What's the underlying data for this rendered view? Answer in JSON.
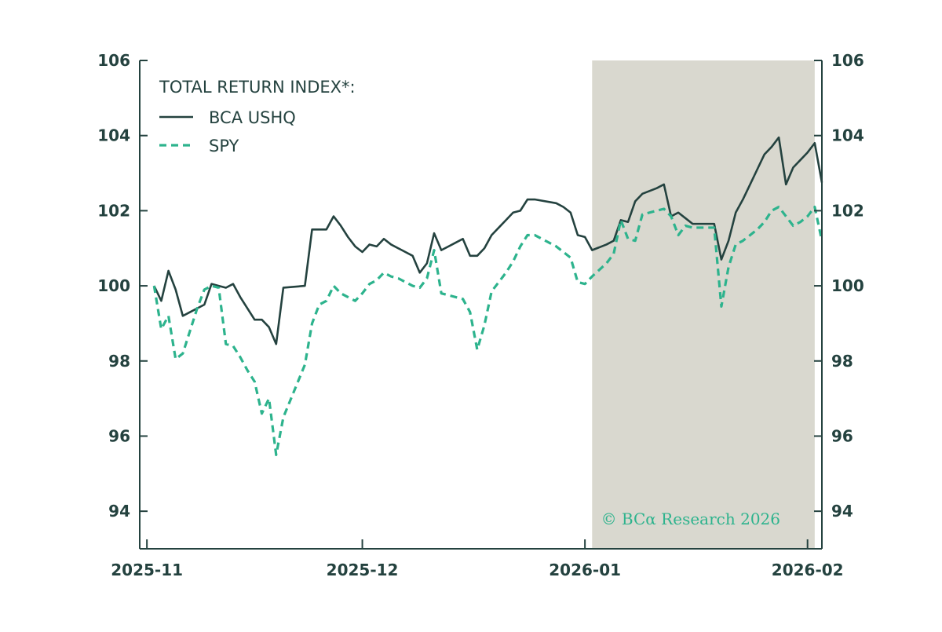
{
  "chart_data": {
    "type": "line",
    "legend_title": "TOTAL RETURN INDEX*:",
    "legend_placement": "top-left",
    "x_tick_labels": [
      "2025-11",
      "2025-12",
      "2026-01",
      "2026-02"
    ],
    "xlim": [
      "2025-10-31",
      "2026-02-03"
    ],
    "ylim": [
      93,
      106
    ],
    "y_ticks": [
      94,
      96,
      98,
      100,
      102,
      104,
      106
    ],
    "y_tick_labels": [
      "94",
      "96",
      "98",
      "100",
      "102",
      "104",
      "106"
    ],
    "grid": false,
    "shaded_region": {
      "start": "2026-01-02",
      "end": "2026-02-02",
      "color": "#d9d8cf"
    },
    "copyright": "© BCα Research 2026",
    "series": [
      {
        "name": "BCA USHQ",
        "color": "#24423f",
        "style": "solid",
        "points": [
          [
            "2025-11-02",
            100.0
          ],
          [
            "2025-11-03",
            99.6
          ],
          [
            "2025-11-04",
            100.4
          ],
          [
            "2025-11-05",
            99.9
          ],
          [
            "2025-11-06",
            99.2
          ],
          [
            "2025-11-07",
            99.3
          ],
          [
            "2025-11-08",
            99.4
          ],
          [
            "2025-11-09",
            99.5
          ],
          [
            "2025-11-10",
            100.05
          ],
          [
            "2025-11-11",
            100.0
          ],
          [
            "2025-11-12",
            99.95
          ],
          [
            "2025-11-13",
            100.05
          ],
          [
            "2025-11-14",
            99.7
          ],
          [
            "2025-11-15",
            99.4
          ],
          [
            "2025-11-16",
            99.1
          ],
          [
            "2025-11-17",
            99.1
          ],
          [
            "2025-11-18",
            98.9
          ],
          [
            "2025-11-19",
            98.45
          ],
          [
            "2025-11-20",
            99.95
          ],
          [
            "2025-11-23",
            100.0
          ],
          [
            "2025-11-24",
            101.5
          ],
          [
            "2025-11-25",
            101.5
          ],
          [
            "2025-11-26",
            101.5
          ],
          [
            "2025-11-27",
            101.85
          ],
          [
            "2025-11-28",
            101.6
          ],
          [
            "2025-11-29",
            101.3
          ],
          [
            "2025-11-30",
            101.05
          ],
          [
            "2025-12-01",
            100.9
          ],
          [
            "2025-12-02",
            101.1
          ],
          [
            "2025-12-03",
            101.05
          ],
          [
            "2025-12-04",
            101.25
          ],
          [
            "2025-12-05",
            101.1
          ],
          [
            "2025-12-06",
            101.0
          ],
          [
            "2025-12-07",
            100.9
          ],
          [
            "2025-12-08",
            100.8
          ],
          [
            "2025-12-09",
            100.35
          ],
          [
            "2025-12-10",
            100.6
          ],
          [
            "2025-12-11",
            101.4
          ],
          [
            "2025-12-12",
            100.95
          ],
          [
            "2025-12-13",
            101.05
          ],
          [
            "2025-12-14",
            101.15
          ],
          [
            "2025-12-15",
            101.25
          ],
          [
            "2025-12-16",
            100.8
          ],
          [
            "2025-12-17",
            100.8
          ],
          [
            "2025-12-18",
            101.0
          ],
          [
            "2025-12-19",
            101.35
          ],
          [
            "2025-12-20",
            101.55
          ],
          [
            "2025-12-21",
            101.75
          ],
          [
            "2025-12-22",
            101.95
          ],
          [
            "2025-12-23",
            102.0
          ],
          [
            "2025-12-24",
            102.3
          ],
          [
            "2025-12-25",
            102.3
          ],
          [
            "2025-12-28",
            102.2
          ],
          [
            "2025-12-29",
            102.1
          ],
          [
            "2025-12-30",
            101.95
          ],
          [
            "2025-12-31",
            101.35
          ],
          [
            "2026-01-01",
            101.3
          ],
          [
            "2026-01-02",
            100.95
          ],
          [
            "2026-01-04",
            101.1
          ],
          [
            "2026-01-05",
            101.2
          ],
          [
            "2026-01-06",
            101.75
          ],
          [
            "2026-01-07",
            101.7
          ],
          [
            "2026-01-08",
            102.25
          ],
          [
            "2026-01-09",
            102.45
          ],
          [
            "2026-01-11",
            102.6
          ],
          [
            "2026-01-12",
            102.7
          ],
          [
            "2026-01-13",
            101.85
          ],
          [
            "2026-01-14",
            101.95
          ],
          [
            "2026-01-15",
            101.8
          ],
          [
            "2026-01-16",
            101.65
          ],
          [
            "2026-01-19",
            101.65
          ],
          [
            "2026-01-20",
            100.7
          ],
          [
            "2026-01-21",
            101.2
          ],
          [
            "2026-01-22",
            101.95
          ],
          [
            "2026-01-23",
            102.3
          ],
          [
            "2026-01-24",
            102.7
          ],
          [
            "2026-01-25",
            103.1
          ],
          [
            "2026-01-26",
            103.5
          ],
          [
            "2026-01-27",
            103.7
          ],
          [
            "2026-01-28",
            103.95
          ],
          [
            "2026-01-29",
            102.7
          ],
          [
            "2026-01-30",
            103.15
          ],
          [
            "2026-01-31",
            103.35
          ],
          [
            "2026-02-01",
            103.55
          ],
          [
            "2026-02-02",
            103.8
          ],
          [
            "2026-02-03",
            102.75
          ]
        ]
      },
      {
        "name": "SPY",
        "color": "#2db38d",
        "style": "dashed",
        "points": [
          [
            "2025-11-02",
            100.0
          ],
          [
            "2025-11-03",
            98.85
          ],
          [
            "2025-11-04",
            99.2
          ],
          [
            "2025-11-05",
            98.05
          ],
          [
            "2025-11-06",
            98.2
          ],
          [
            "2025-11-07",
            98.8
          ],
          [
            "2025-11-08",
            99.4
          ],
          [
            "2025-11-09",
            99.9
          ],
          [
            "2025-11-10",
            100.0
          ],
          [
            "2025-11-11",
            99.95
          ],
          [
            "2025-11-12",
            98.45
          ],
          [
            "2025-11-13",
            98.4
          ],
          [
            "2025-11-14",
            98.1
          ],
          [
            "2025-11-15",
            97.75
          ],
          [
            "2025-11-16",
            97.45
          ],
          [
            "2025-11-17",
            96.6
          ],
          [
            "2025-11-18",
            97.0
          ],
          [
            "2025-11-19",
            95.5
          ],
          [
            "2025-11-20",
            96.5
          ],
          [
            "2025-11-23",
            97.9
          ],
          [
            "2025-11-24",
            99.0
          ],
          [
            "2025-11-25",
            99.5
          ],
          [
            "2025-11-26",
            99.6
          ],
          [
            "2025-11-27",
            100.0
          ],
          [
            "2025-11-28",
            99.8
          ],
          [
            "2025-11-29",
            99.7
          ],
          [
            "2025-11-30",
            99.6
          ],
          [
            "2025-12-01",
            99.8
          ],
          [
            "2025-12-02",
            100.05
          ],
          [
            "2025-12-03",
            100.15
          ],
          [
            "2025-12-04",
            100.35
          ],
          [
            "2025-12-05",
            100.25
          ],
          [
            "2025-12-06",
            100.2
          ],
          [
            "2025-12-07",
            100.1
          ],
          [
            "2025-12-08",
            100.0
          ],
          [
            "2025-12-09",
            99.95
          ],
          [
            "2025-12-10",
            100.2
          ],
          [
            "2025-12-11",
            100.95
          ],
          [
            "2025-12-12",
            99.8
          ],
          [
            "2025-12-13",
            99.75
          ],
          [
            "2025-12-14",
            99.7
          ],
          [
            "2025-12-15",
            99.65
          ],
          [
            "2025-12-16",
            99.3
          ],
          [
            "2025-12-17",
            98.3
          ],
          [
            "2025-12-18",
            98.95
          ],
          [
            "2025-12-19",
            99.85
          ],
          [
            "2025-12-20",
            100.1
          ],
          [
            "2025-12-21",
            100.35
          ],
          [
            "2025-12-22",
            100.65
          ],
          [
            "2025-12-23",
            101.05
          ],
          [
            "2025-12-24",
            101.35
          ],
          [
            "2025-12-25",
            101.35
          ],
          [
            "2025-12-28",
            101.05
          ],
          [
            "2025-12-29",
            100.9
          ],
          [
            "2025-12-30",
            100.75
          ],
          [
            "2025-12-31",
            100.1
          ],
          [
            "2026-01-01",
            100.05
          ],
          [
            "2026-01-02",
            100.25
          ],
          [
            "2026-01-04",
            100.6
          ],
          [
            "2026-01-05",
            100.85
          ],
          [
            "2026-01-06",
            101.75
          ],
          [
            "2026-01-07",
            101.25
          ],
          [
            "2026-01-08",
            101.2
          ],
          [
            "2026-01-09",
            101.9
          ],
          [
            "2026-01-11",
            102.0
          ],
          [
            "2026-01-12",
            102.05
          ],
          [
            "2026-01-13",
            101.85
          ],
          [
            "2026-01-14",
            101.35
          ],
          [
            "2026-01-15",
            101.6
          ],
          [
            "2026-01-16",
            101.55
          ],
          [
            "2026-01-19",
            101.55
          ],
          [
            "2026-01-20",
            99.45
          ],
          [
            "2026-01-21",
            100.5
          ],
          [
            "2026-01-22",
            101.1
          ],
          [
            "2026-01-23",
            101.2
          ],
          [
            "2026-01-24",
            101.35
          ],
          [
            "2026-01-25",
            101.5
          ],
          [
            "2026-01-26",
            101.7
          ],
          [
            "2026-01-27",
            102.0
          ],
          [
            "2026-01-28",
            102.1
          ],
          [
            "2026-01-29",
            101.85
          ],
          [
            "2026-01-30",
            101.6
          ],
          [
            "2026-01-31",
            101.7
          ],
          [
            "2026-02-01",
            101.85
          ],
          [
            "2026-02-02",
            102.1
          ],
          [
            "2026-02-03",
            101.2
          ]
        ]
      }
    ]
  }
}
